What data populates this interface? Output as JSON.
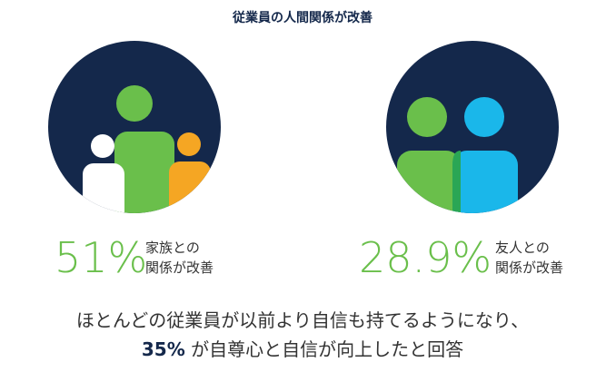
{
  "title": "従業員の人間関係が改善",
  "stats": [
    {
      "value": "51%",
      "label": [
        "家族との",
        "関係が改善"
      ]
    },
    {
      "value": "28.9%",
      "label": [
        "友人との",
        "関係が改善"
      ]
    }
  ],
  "footer": {
    "line1": "ほとんどの従業員が以前より自信も持てるようになり、",
    "highlight": "35%",
    "line2": " が自尊心と自信が向上したと回答"
  }
}
